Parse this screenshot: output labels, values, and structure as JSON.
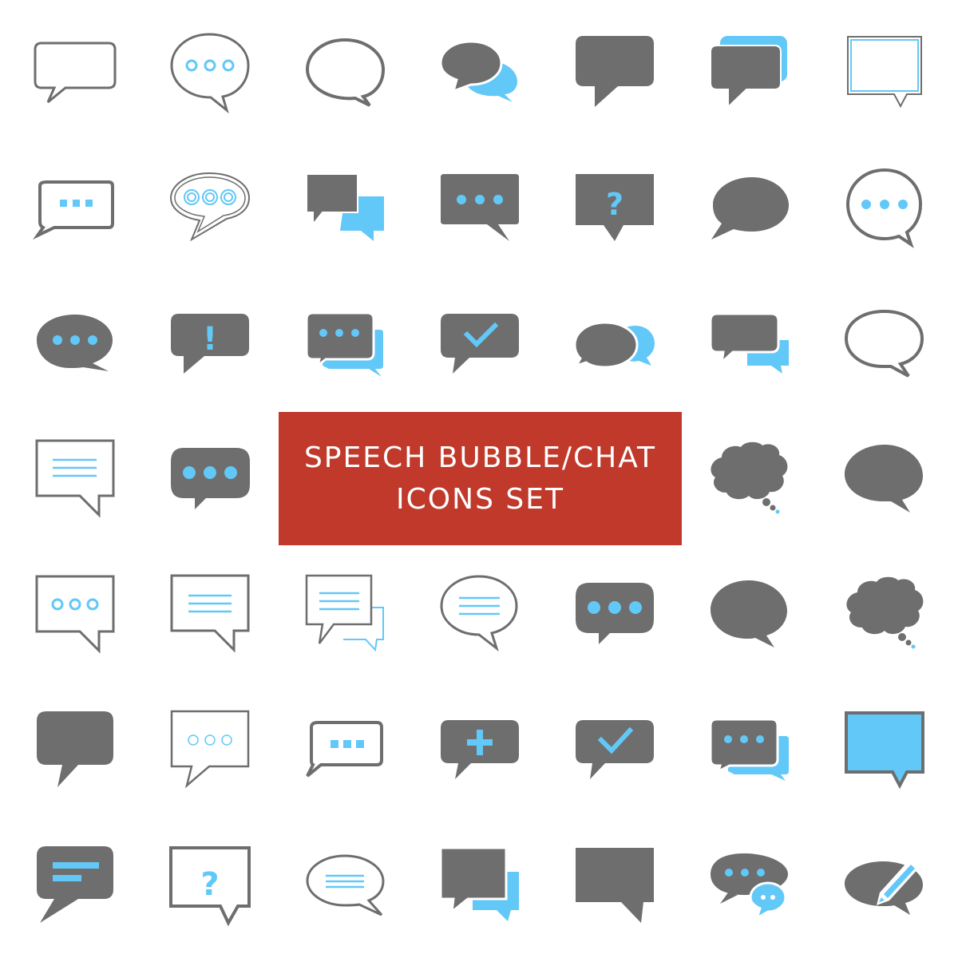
{
  "banner": {
    "line1": "SPEECH BUBBLE/CHAT",
    "line2": "ICONS SET"
  },
  "glyphs": {
    "question": "?",
    "exclamation": "!"
  },
  "colors": {
    "gray": "#6e6e6e",
    "blue": "#62c8f7",
    "red": "#c0392b",
    "white": "#ffffff"
  },
  "icons": [
    [
      "speech-bubble-outline-rect-icon",
      "speech-bubble-outline-oval-dots-icon",
      "speech-bubble-outline-oval-icon",
      "speech-bubbles-oval-pair-icon",
      "speech-bubble-filled-rect-icon",
      "speech-bubbles-stacked-rect-icon",
      "speech-bubble-double-outline-rect-icon"
    ],
    [
      "speech-bubble-outline-squares-icon",
      "speech-bubble-outline-oval-rings-icon",
      "speech-bubbles-square-pair-icon",
      "speech-bubble-filled-dots-icon",
      "speech-bubble-question-icon",
      "speech-bubble-filled-round-icon",
      "speech-bubble-outline-circle-dots-icon"
    ],
    [
      "speech-bubble-oval-dots-icon",
      "speech-bubble-exclamation-icon",
      "speech-bubbles-dots-pair-icon",
      "speech-bubble-check-icon",
      "speech-bubbles-oval-small-pair-icon",
      "speech-bubbles-rect-small-pair-icon",
      "speech-bubble-outline-oval-large-icon"
    ],
    [
      "speech-bubble-outline-lines-icon",
      "speech-bubble-pill-dots-icon",
      "",
      "",
      "",
      "thought-bubble-cloud-icon",
      "speech-bubble-filled-oval-icon"
    ],
    [
      "speech-bubble-outline-circle-dots-rect-icon",
      "speech-bubble-outline-lines-rect-icon",
      "speech-bubbles-outline-lines-pair-icon",
      "speech-bubble-outline-oval-lines-icon",
      "speech-bubble-pill-dots-large-icon",
      "speech-bubble-filled-oval-alt-icon",
      "thought-bubble-cloud-alt-icon"
    ],
    [
      "speech-bubble-filled-rounded-icon",
      "speech-bubble-outline-light-dots-icon",
      "speech-bubble-outline-squares-alt-icon",
      "speech-bubble-plus-icon",
      "speech-bubble-check-alt-icon",
      "speech-bubbles-dots-pair-alt-icon",
      "speech-bubble-blue-fill-icon"
    ],
    [
      "speech-bubble-text-lines-icon",
      "speech-bubble-outline-question-icon",
      "speech-bubble-outline-oval-lines-alt-icon",
      "speech-bubbles-square-pair-alt-icon",
      "speech-bubble-filled-square-icon",
      "speech-bubbles-dots-chat-icon",
      "speech-bubble-pencil-icon"
    ]
  ]
}
